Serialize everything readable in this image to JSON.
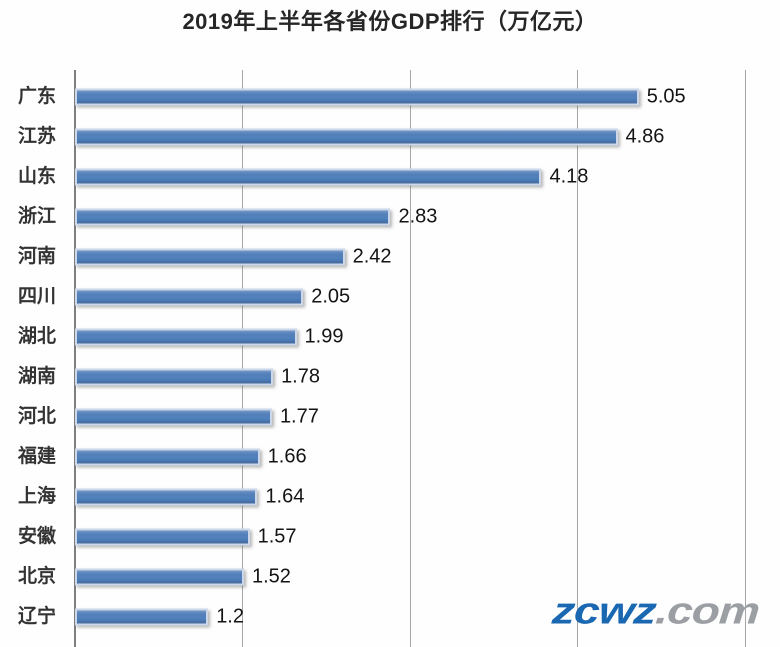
{
  "title": "2019年上半年各省份GDP排行（万亿元）",
  "watermark": {
    "primary": "zcwz",
    "secondary": ".com",
    "primary_color": "#1a67b2",
    "secondary_color": "#9b9ea3"
  },
  "colors": {
    "bar_fill": "#4f81bd",
    "bar_border": "#ccd8ea",
    "gridline": "#a6a6a6",
    "axis_line": "#7f7f7f",
    "text": "#262626"
  },
  "chart_data": {
    "type": "bar",
    "orientation": "horizontal",
    "title": "2019年上半年各省份GDP排行（万亿元）",
    "categories": [
      "广东",
      "江苏",
      "山东",
      "浙江",
      "河南",
      "四川",
      "湖北",
      "湖南",
      "河北",
      "福建",
      "上海",
      "安徽",
      "北京",
      "辽宁"
    ],
    "values": [
      5.05,
      4.86,
      4.18,
      2.83,
      2.42,
      2.05,
      1.99,
      1.78,
      1.77,
      1.66,
      1.64,
      1.57,
      1.52,
      1.2
    ],
    "value_labels": [
      "5.05",
      "4.86",
      "4.18",
      "2.83",
      "2.42",
      "2.05",
      "1.99",
      "1.78",
      "1.77",
      "1.66",
      "1.64",
      "1.57",
      "1.52",
      "1.2"
    ],
    "xlabel": "",
    "ylabel": "",
    "xlim": [
      0,
      6
    ],
    "gridline_interval": 1.5,
    "grid": true,
    "legend": false,
    "data_labels": true
  }
}
